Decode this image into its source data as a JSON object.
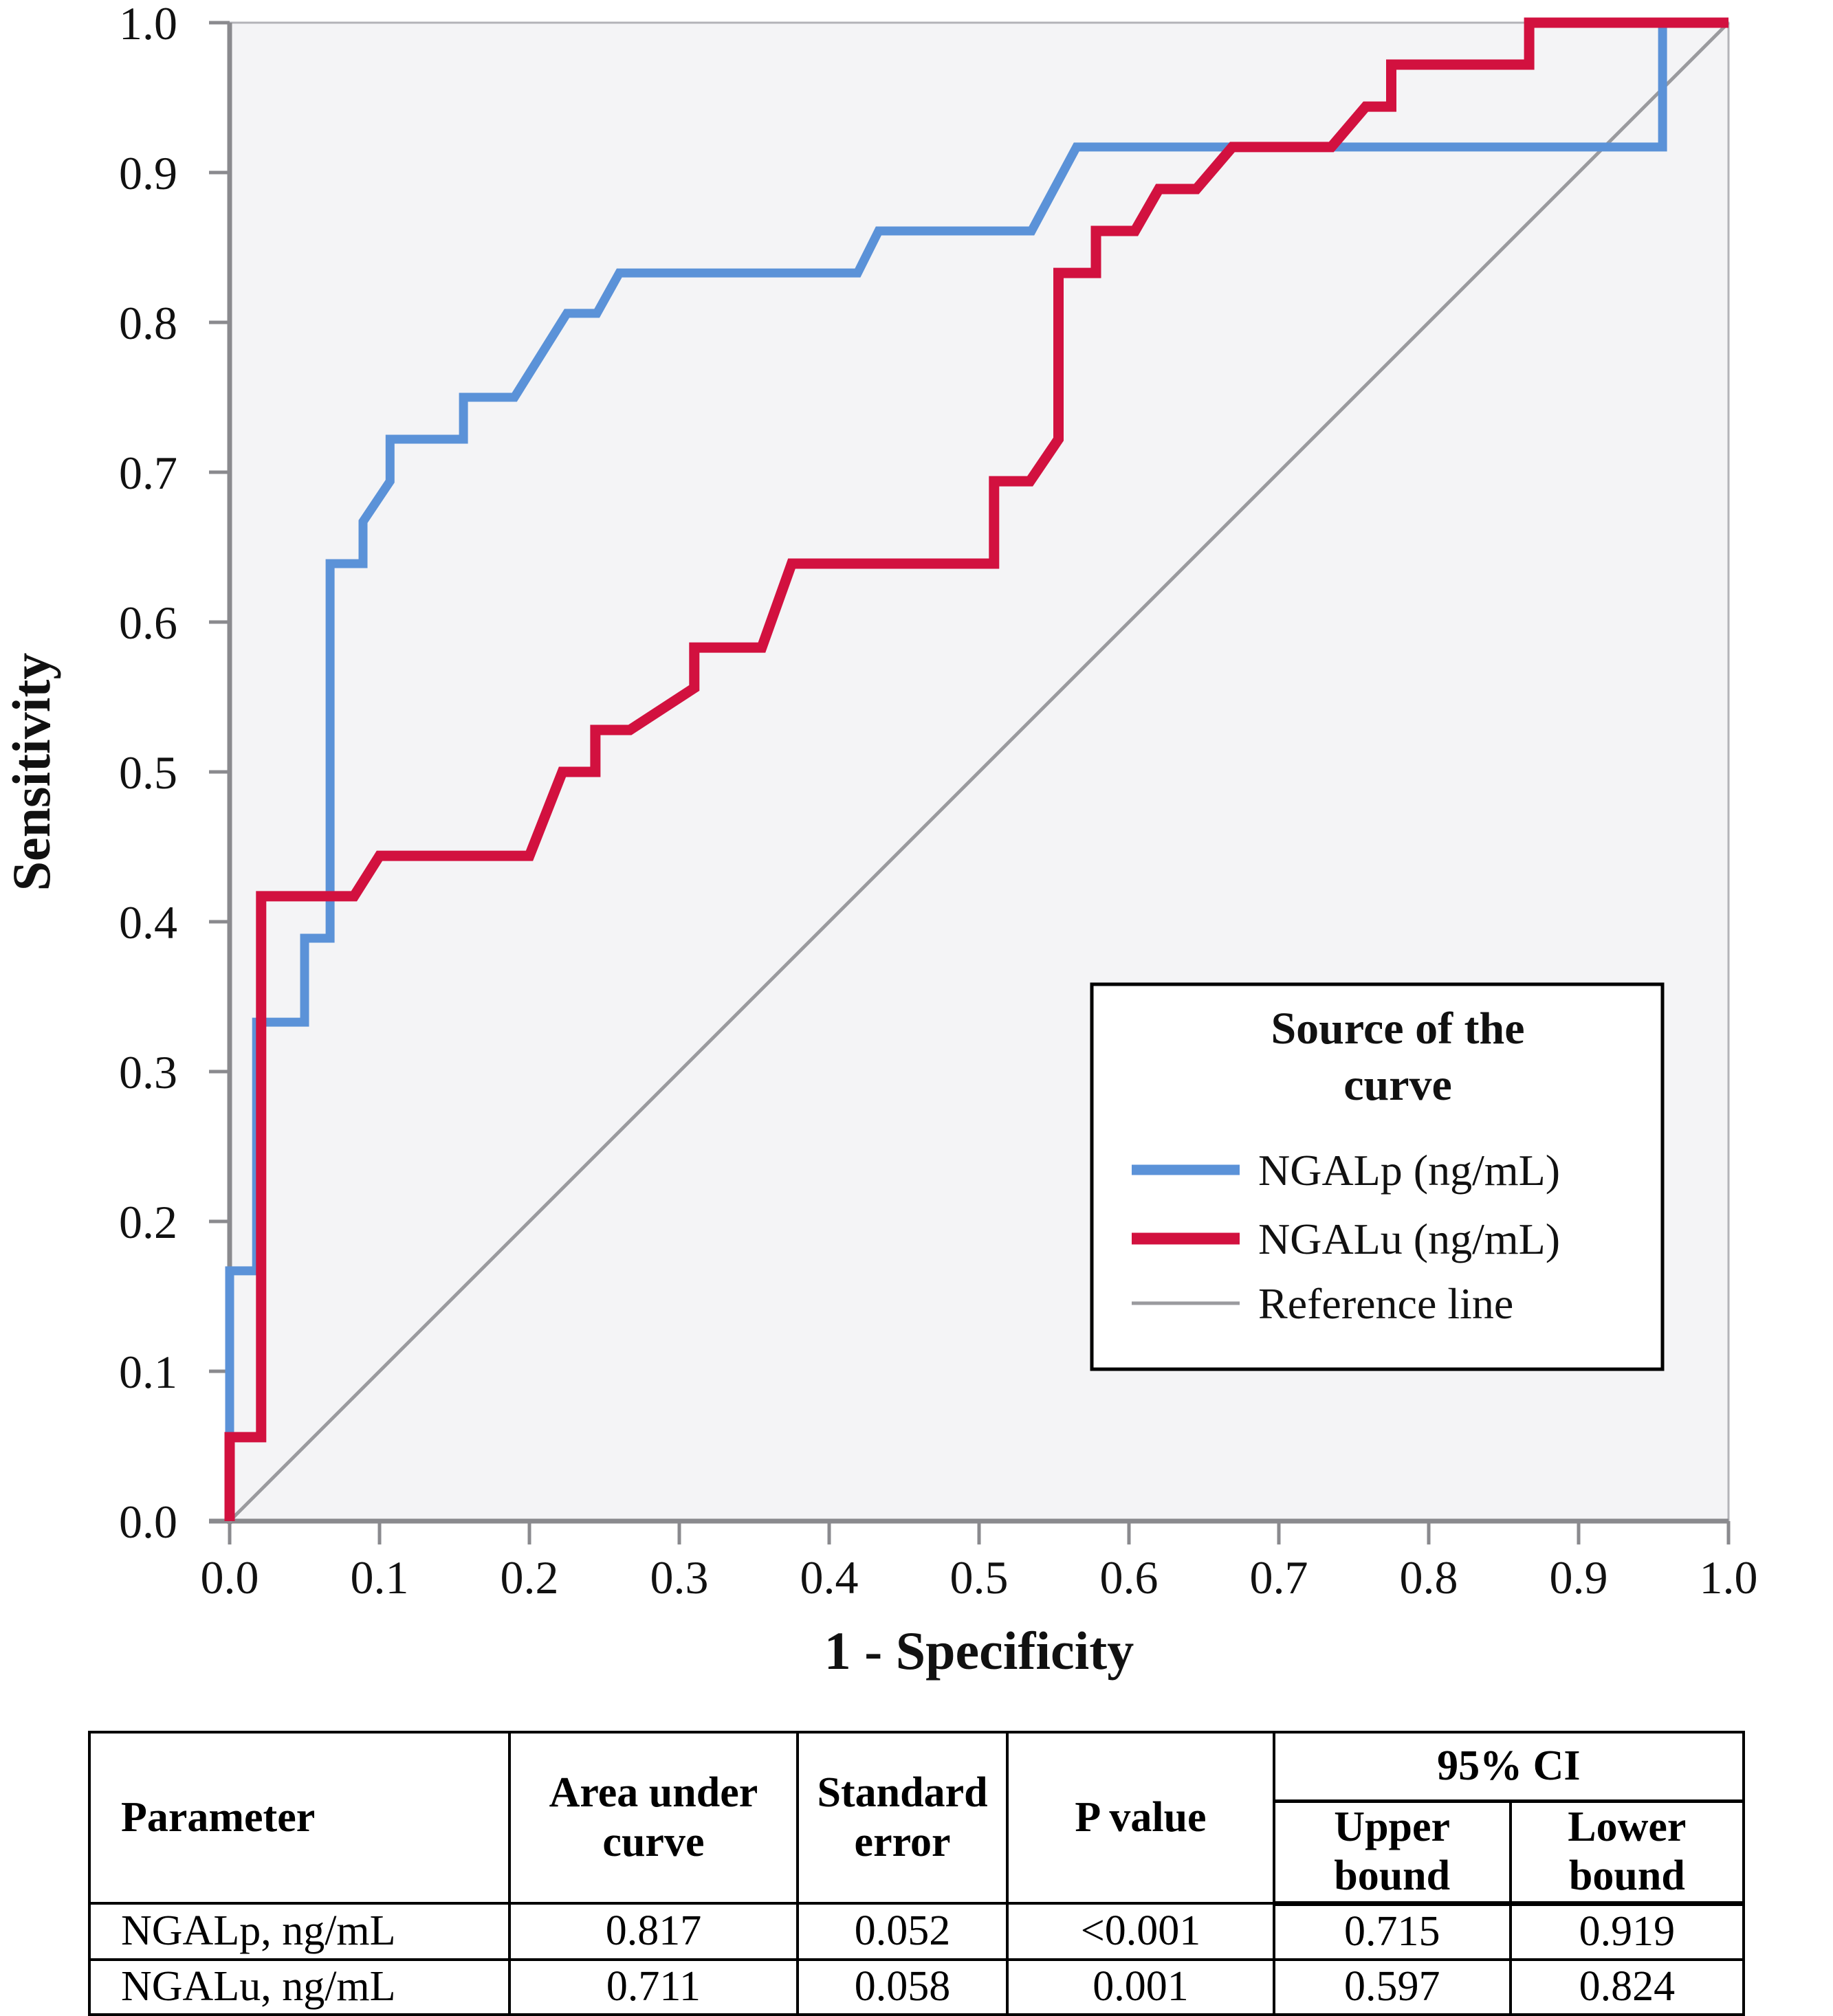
{
  "chart_data": {
    "type": "line",
    "subtype": "roc-step-curves",
    "xlabel": "1 - Specificity",
    "ylabel": "Sensitivity",
    "xlim": [
      0.0,
      1.0
    ],
    "ylim": [
      0.0,
      1.0
    ],
    "x_ticks": [
      "0.0",
      "0.1",
      "0.2",
      "0.3",
      "0.4",
      "0.5",
      "0.6",
      "0.7",
      "0.8",
      "0.9",
      "1.0"
    ],
    "y_ticks": [
      "0.0",
      "0.1",
      "0.2",
      "0.3",
      "0.4",
      "0.5",
      "0.6",
      "0.7",
      "0.8",
      "0.9",
      "1.0"
    ],
    "grid": false,
    "plot_bg": "#f4f4f6",
    "frame_color": "#b3b3b8",
    "axis_color": "#8a8a8e",
    "legend_position": "lower-right-box",
    "legend_title": [
      "Source of the",
      "curve"
    ],
    "series": [
      {
        "name": "NGALp (ng/mL)",
        "color": "#5b92d8",
        "width": 13,
        "points": [
          [
            0,
            0
          ],
          [
            0,
            0.167
          ],
          [
            0.018,
            0.167
          ],
          [
            0.018,
            0.333
          ],
          [
            0.05,
            0.333
          ],
          [
            0.05,
            0.389
          ],
          [
            0.067,
            0.389
          ],
          [
            0.067,
            0.639
          ],
          [
            0.089,
            0.639
          ],
          [
            0.089,
            0.667
          ],
          [
            0.107,
            0.694
          ],
          [
            0.107,
            0.722
          ],
          [
            0.156,
            0.722
          ],
          [
            0.156,
            0.75
          ],
          [
            0.19,
            0.75
          ],
          [
            0.225,
            0.806
          ],
          [
            0.245,
            0.806
          ],
          [
            0.26,
            0.833
          ],
          [
            0.419,
            0.833
          ],
          [
            0.433,
            0.861
          ],
          [
            0.535,
            0.861
          ],
          [
            0.565,
            0.917
          ],
          [
            0.956,
            0.917
          ],
          [
            0.956,
            1
          ],
          [
            1,
            1
          ]
        ]
      },
      {
        "name": "NGALu (ng/mL)",
        "color": "#d2113f",
        "width": 15,
        "points": [
          [
            0,
            0
          ],
          [
            0,
            0.056
          ],
          [
            0.021,
            0.056
          ],
          [
            0.021,
            0.417
          ],
          [
            0.083,
            0.417
          ],
          [
            0.1,
            0.444
          ],
          [
            0.2,
            0.444
          ],
          [
            0.222,
            0.5
          ],
          [
            0.244,
            0.5
          ],
          [
            0.244,
            0.528
          ],
          [
            0.267,
            0.528
          ],
          [
            0.31,
            0.556
          ],
          [
            0.31,
            0.583
          ],
          [
            0.355,
            0.583
          ],
          [
            0.375,
            0.639
          ],
          [
            0.51,
            0.639
          ],
          [
            0.51,
            0.694
          ],
          [
            0.534,
            0.694
          ],
          [
            0.553,
            0.722
          ],
          [
            0.553,
            0.833
          ],
          [
            0.578,
            0.833
          ],
          [
            0.578,
            0.861
          ],
          [
            0.604,
            0.861
          ],
          [
            0.62,
            0.889
          ],
          [
            0.645,
            0.889
          ],
          [
            0.669,
            0.917
          ],
          [
            0.735,
            0.917
          ],
          [
            0.758,
            0.944
          ],
          [
            0.775,
            0.944
          ],
          [
            0.775,
            0.972
          ],
          [
            0.867,
            0.972
          ],
          [
            0.867,
            1
          ],
          [
            1,
            1
          ]
        ]
      },
      {
        "name": "Reference line",
        "color": "#9a9a9e",
        "width": 5,
        "points": [
          [
            0,
            0
          ],
          [
            1,
            1
          ]
        ]
      }
    ]
  },
  "table": {
    "headers": {
      "parameter": "Parameter",
      "auc": "Area under curve",
      "se": "Standard error",
      "p": "P value",
      "ci": "95% CI",
      "upper": "Upper bound",
      "lower": "Lower bound"
    },
    "rows": [
      {
        "param": "NGALp, ng/mL",
        "auc": "0.817",
        "se": "0.052",
        "p": "<0.001",
        "upper": "0.715",
        "lower": "0.919"
      },
      {
        "param": "NGALu, ng/mL",
        "auc": "0.711",
        "se": "0.058",
        "p": "0.001",
        "upper": "0.597",
        "lower": "0.824"
      }
    ]
  }
}
